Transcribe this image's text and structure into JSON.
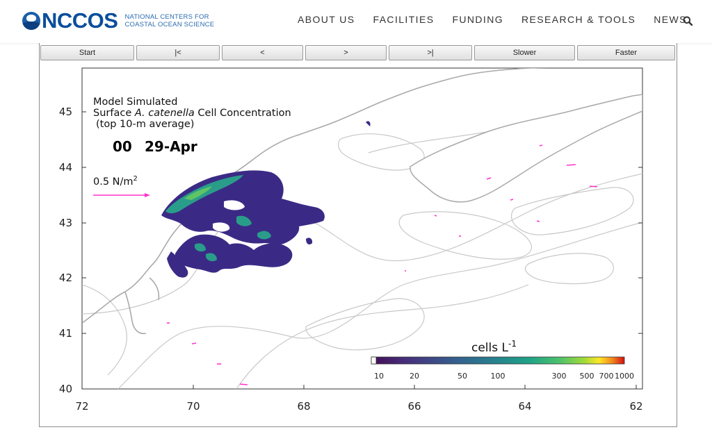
{
  "header": {
    "logo_text": "NCCOS",
    "logo_sub_line1": "NATIONAL CENTERS FOR",
    "logo_sub_line2": "COASTAL OCEAN SCIENCE",
    "nav": [
      "ABOUT US",
      "FACILITIES",
      "FUNDING",
      "RESEARCH & TOOLS",
      "NEWS"
    ]
  },
  "controls": [
    "Start",
    "|<",
    "<",
    ">",
    ">|",
    "Slower",
    "Faster"
  ],
  "plot": {
    "title_line1": "Model Simulated",
    "title_line2_prefix": "Surface ",
    "title_line2_species": "A. catenella",
    "title_line2_suffix": " Cell Concentration",
    "title_line3": "(top 10-m average)",
    "time_hour": "00",
    "time_date": "29-Apr",
    "vector_scale": "0.5 N/m",
    "vector_scale_exp": "2",
    "x_ticks": [
      "72",
      "70",
      "68",
      "66",
      "64",
      "62"
    ],
    "y_ticks": [
      "45",
      "44",
      "43",
      "42",
      "41",
      "40"
    ],
    "colorbar_title": "cells L",
    "colorbar_exp": "-1",
    "colorbar_ticks": [
      "10",
      "20",
      "50",
      "100",
      "300",
      "500",
      "700",
      "1000"
    ],
    "colors": {
      "low": "#3b2a85",
      "mid": "#2a9d8a",
      "high": "#5fc466",
      "coast": "#b0b0b0",
      "vector": "#ff33cc"
    }
  }
}
